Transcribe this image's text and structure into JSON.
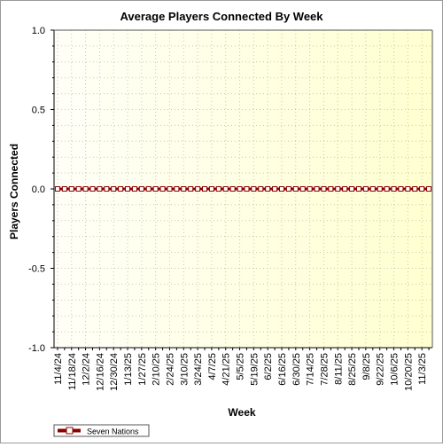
{
  "chart_data": {
    "type": "line",
    "title": "Average Players Connected By Week",
    "xlabel": "Week",
    "ylabel": "Players Connected",
    "ylim": [
      -1.0,
      1.0
    ],
    "yticks": [
      "1.0",
      "0.5",
      "0.0",
      "-0.5",
      "-1.0"
    ],
    "ytick_values": [
      1.0,
      0.5,
      0.0,
      -0.5,
      -1.0
    ],
    "x_tick_labels": [
      "11/4/24",
      "11/18/24",
      "12/2/24",
      "12/16/24",
      "12/30/24",
      "1/13/25",
      "1/27/25",
      "2/10/25",
      "2/24/25",
      "3/10/25",
      "3/24/25",
      "4/7/25",
      "4/21/25",
      "5/5/25",
      "5/19/25",
      "6/2/25",
      "6/16/25",
      "6/30/25",
      "7/14/25",
      "7/28/25",
      "8/11/25",
      "8/25/25",
      "9/8/25",
      "9/22/25",
      "10/6/25",
      "10/20/25",
      "11/3/25"
    ],
    "x": [
      "11/4/24",
      "11/11/24",
      "11/18/24",
      "11/25/24",
      "12/2/24",
      "12/9/24",
      "12/16/24",
      "12/23/24",
      "12/30/24",
      "1/6/25",
      "1/13/25",
      "1/20/25",
      "1/27/25",
      "2/3/25",
      "2/10/25",
      "2/17/25",
      "2/24/25",
      "3/3/25",
      "3/10/25",
      "3/17/25",
      "3/24/25",
      "3/31/25",
      "4/7/25",
      "4/14/25",
      "4/21/25",
      "4/28/25",
      "5/5/25",
      "5/12/25",
      "5/19/25",
      "5/26/25",
      "6/2/25",
      "6/9/25",
      "6/16/25",
      "6/23/25",
      "6/30/25",
      "7/7/25",
      "7/14/25",
      "7/21/25",
      "7/28/25",
      "8/4/25",
      "8/11/25",
      "8/18/25",
      "8/25/25",
      "9/1/25",
      "9/8/25",
      "9/15/25",
      "9/22/25",
      "9/29/25",
      "10/6/25",
      "10/13/25",
      "10/20/25",
      "10/27/25",
      "11/3/25",
      "11/10/25"
    ],
    "series": [
      {
        "name": "Seven Nations",
        "color": "#8b0000",
        "values": [
          0,
          0,
          0,
          0,
          0,
          0,
          0,
          0,
          0,
          0,
          0,
          0,
          0,
          0,
          0,
          0,
          0,
          0,
          0,
          0,
          0,
          0,
          0,
          0,
          0,
          0,
          0,
          0,
          0,
          0,
          0,
          0,
          0,
          0,
          0,
          0,
          0,
          0,
          0,
          0,
          0,
          0,
          0,
          0,
          0,
          0,
          0,
          0,
          0,
          0,
          0,
          0,
          0,
          0
        ]
      }
    ],
    "grid": true,
    "legend_position": "bottom-left",
    "plot_background": [
      "#fffff8",
      "#ffffd0"
    ]
  }
}
